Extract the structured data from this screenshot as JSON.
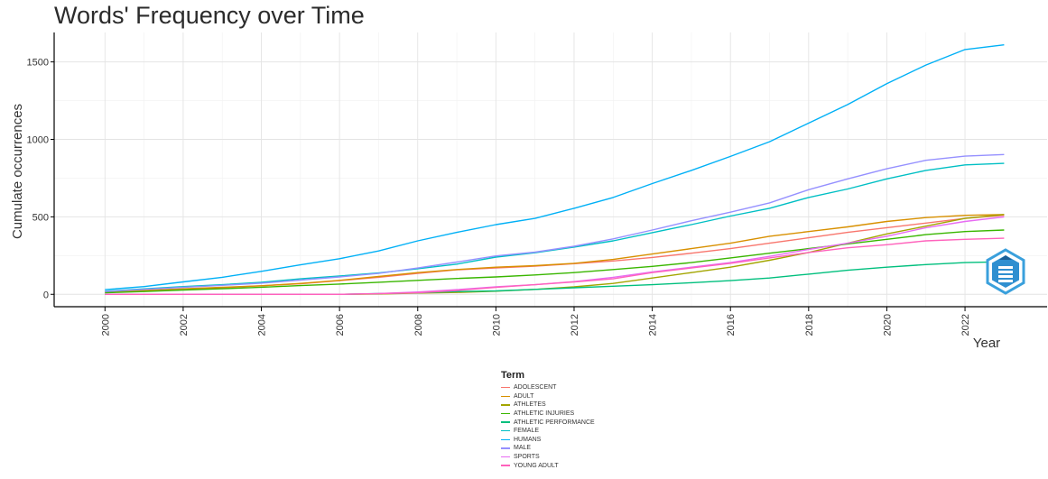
{
  "chart_data": {
    "type": "line",
    "title": "Words' Frequency over Time",
    "xlabel": "Year",
    "ylabel": "Cumulate occurrences",
    "xlim": [
      1998.7,
      2024.1
    ],
    "ylim": [
      -80,
      1690
    ],
    "x_ticks": [
      2000,
      2002,
      2004,
      2006,
      2008,
      2010,
      2012,
      2014,
      2016,
      2018,
      2020,
      2022
    ],
    "y_ticks": [
      0,
      500,
      1000,
      1500
    ],
    "grid": true,
    "legend_title": "Term",
    "legend_position": "bottom",
    "x": [
      2000,
      2001,
      2002,
      2003,
      2004,
      2005,
      2006,
      2007,
      2008,
      2009,
      2010,
      2011,
      2012,
      2013,
      2014,
      2015,
      2016,
      2017,
      2018,
      2019,
      2020,
      2021,
      2022,
      2023
    ],
    "series": [
      {
        "name": "ADOLESCENT",
        "color": "#F8766D",
        "values": [
          12,
          22,
          33,
          42,
          55,
          68,
          88,
          110,
          135,
          158,
          170,
          182,
          198,
          215,
          238,
          265,
          295,
          330,
          365,
          400,
          430,
          460,
          490,
          510
        ]
      },
      {
        "name": "ADULT",
        "color": "#D89000",
        "values": [
          15,
          25,
          35,
          45,
          55,
          70,
          90,
          115,
          140,
          160,
          175,
          185,
          200,
          225,
          260,
          295,
          330,
          375,
          405,
          435,
          470,
          495,
          510,
          515
        ]
      },
      {
        "name": "ATHLETES",
        "color": "#A3A500",
        "values": [
          0,
          0,
          0,
          0,
          0,
          0,
          0,
          2,
          8,
          12,
          20,
          32,
          48,
          70,
          105,
          140,
          175,
          220,
          270,
          330,
          390,
          440,
          490,
          515
        ]
      },
      {
        "name": "ATHLETIC INJURIES",
        "color": "#39B600",
        "values": [
          10,
          18,
          28,
          36,
          46,
          56,
          66,
          78,
          90,
          102,
          112,
          125,
          140,
          160,
          180,
          205,
          235,
          265,
          295,
          325,
          355,
          385,
          405,
          415
        ]
      },
      {
        "name": "ATHLETIC PERFORMANCE",
        "color": "#00BF7D",
        "values": [
          0,
          0,
          0,
          0,
          0,
          0,
          0,
          5,
          10,
          18,
          22,
          32,
          42,
          52,
          62,
          75,
          88,
          105,
          130,
          155,
          175,
          192,
          205,
          210
        ]
      },
      {
        "name": "FEMALE",
        "color": "#00BFC4",
        "values": [
          20,
          35,
          50,
          62,
          78,
          100,
          118,
          138,
          165,
          195,
          240,
          268,
          305,
          345,
          398,
          450,
          505,
          555,
          625,
          680,
          745,
          800,
          835,
          845
        ]
      },
      {
        "name": "HUMANS",
        "color": "#00B0F6",
        "values": [
          30,
          50,
          80,
          110,
          148,
          190,
          230,
          280,
          345,
          400,
          450,
          490,
          555,
          625,
          715,
          800,
          890,
          985,
          1105,
          1225,
          1360,
          1480,
          1580,
          1610
        ]
      },
      {
        "name": "MALE",
        "color": "#9590FF",
        "values": [
          18,
          32,
          45,
          58,
          72,
          92,
          112,
          135,
          170,
          208,
          248,
          272,
          310,
          358,
          415,
          475,
          530,
          590,
          675,
          745,
          810,
          865,
          892,
          902
        ]
      },
      {
        "name": "SPORTS",
        "color": "#E76BF3",
        "values": [
          0,
          0,
          0,
          0,
          0,
          0,
          0,
          5,
          15,
          30,
          48,
          62,
          82,
          110,
          145,
          175,
          205,
          245,
          290,
          330,
          375,
          430,
          470,
          500
        ]
      },
      {
        "name": "YOUNG ADULT",
        "color": "#FF62BC",
        "values": [
          0,
          0,
          0,
          0,
          0,
          0,
          0,
          4,
          10,
          25,
          45,
          62,
          80,
          100,
          140,
          170,
          200,
          235,
          270,
          300,
          320,
          345,
          355,
          362
        ]
      }
    ]
  },
  "icons": {
    "logo": "bibliometrix-logo"
  }
}
